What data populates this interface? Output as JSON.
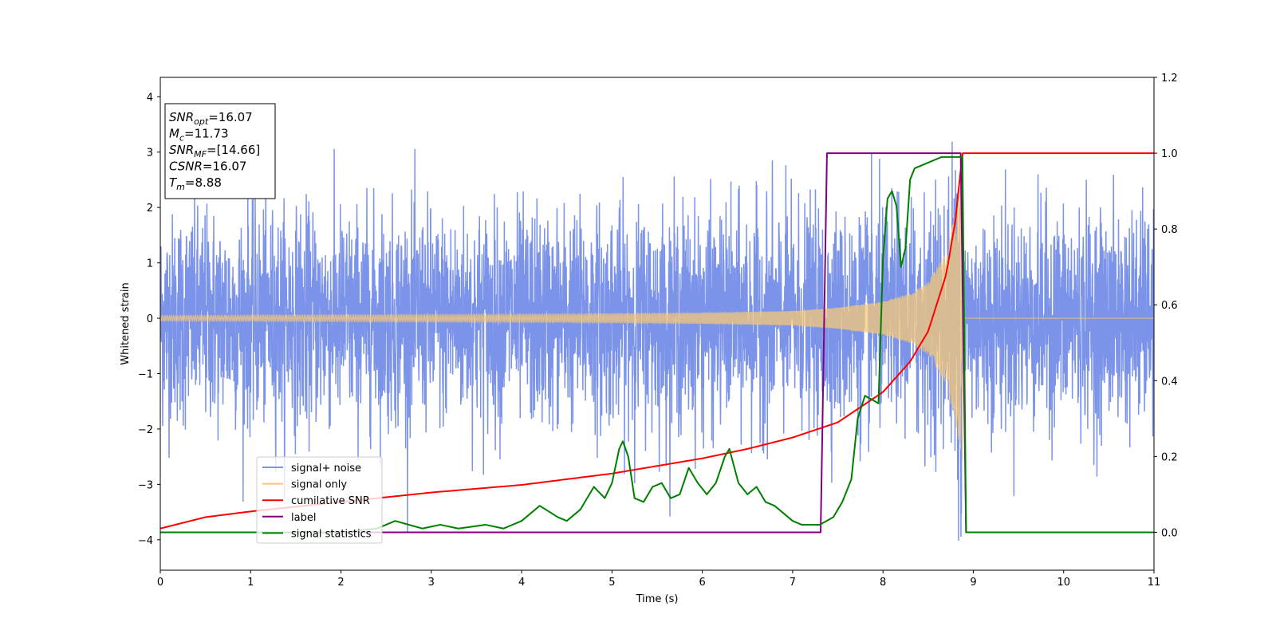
{
  "chart_data": {
    "type": "line",
    "xlabel": "Time (s)",
    "ylabel_left": "Whitened strain",
    "ylabel_right": "",
    "xlim": [
      0,
      11
    ],
    "ylim_left": [
      -4.55,
      4.35
    ],
    "ylim_right": [
      -0.1,
      1.2
    ],
    "x_ticks": [
      0,
      1,
      2,
      3,
      4,
      5,
      6,
      7,
      8,
      9,
      10,
      11
    ],
    "y_ticks_left": [
      -4,
      -3,
      -2,
      -1,
      0,
      1,
      2,
      3,
      4
    ],
    "y_ticks_right": [
      0.0,
      0.2,
      0.4,
      0.6,
      0.8,
      1.0,
      1.2
    ],
    "y_tick_labels_left": [
      "−4",
      "−3",
      "−2",
      "−1",
      "0",
      "1",
      "2",
      "3",
      "4"
    ],
    "y_tick_labels_right": [
      "0.0",
      "0.2",
      "0.4",
      "0.6",
      "0.8",
      "1.0",
      "1.2"
    ],
    "grid": false,
    "legend_position": "lower-left",
    "info_box": {
      "lines": [
        {
          "main": "SNR",
          "sub": "opt",
          "value": "=16.07"
        },
        {
          "main": "M",
          "sub": "c",
          "value": "=11.73"
        },
        {
          "main": "SNR",
          "sub": "MF",
          "value": "=[14.66]"
        },
        {
          "main": "CSNR",
          "sub": "",
          "value": "=16.07"
        },
        {
          "main": "T",
          "sub": "m",
          "value": "=8.88"
        }
      ]
    },
    "series": [
      {
        "name": "signal+ noise",
        "axis": "left",
        "color": "#7b93e8",
        "style": "noise",
        "noise_std": 0.95,
        "spike_range": [
          -4.15,
          3.95
        ]
      },
      {
        "name": "signal only",
        "axis": "left",
        "color": "#f5c878",
        "style": "chirp",
        "t_merge": 8.88,
        "envelope": {
          "t": [
            0,
            2,
            4,
            6,
            7,
            7.5,
            8,
            8.3,
            8.5,
            8.7,
            8.8,
            8.88
          ],
          "amp": [
            0.05,
            0.06,
            0.07,
            0.1,
            0.13,
            0.19,
            0.3,
            0.45,
            0.65,
            1.2,
            1.9,
            2.6
          ]
        }
      },
      {
        "name": "cumilative SNR",
        "axis": "right",
        "color": "#ff0000",
        "x": [
          0,
          0.5,
          1,
          2,
          3,
          4,
          5,
          6,
          6.5,
          7,
          7.5,
          8,
          8.3,
          8.5,
          8.7,
          8.8,
          8.88,
          8.9,
          11
        ],
        "y": [
          0.01,
          0.04,
          0.055,
          0.08,
          0.105,
          0.125,
          0.155,
          0.195,
          0.22,
          0.25,
          0.29,
          0.37,
          0.45,
          0.53,
          0.68,
          0.82,
          1.0,
          1.0,
          1.0
        ]
      },
      {
        "name": "label",
        "axis": "right",
        "color": "#800080",
        "x": [
          0,
          7.31,
          7.32,
          7.38,
          8.86,
          8.92,
          11
        ],
        "y": [
          0.0,
          0.0,
          0.14,
          1.0,
          1.0,
          0.0,
          0.0
        ]
      },
      {
        "name": "signal statistics",
        "axis": "right",
        "color": "#008000",
        "x": [
          0,
          1,
          2,
          2.4,
          2.6,
          2.9,
          3.1,
          3.3,
          3.6,
          3.8,
          4.0,
          4.2,
          4.4,
          4.5,
          4.65,
          4.8,
          4.92,
          5.0,
          5.08,
          5.12,
          5.18,
          5.25,
          5.35,
          5.45,
          5.55,
          5.65,
          5.75,
          5.85,
          5.95,
          6.05,
          6.15,
          6.25,
          6.3,
          6.4,
          6.5,
          6.6,
          6.7,
          6.8,
          6.9,
          7.0,
          7.1,
          7.3,
          7.45,
          7.55,
          7.65,
          7.72,
          7.8,
          7.88,
          7.95,
          8.0,
          8.05,
          8.1,
          8.15,
          8.2,
          8.25,
          8.3,
          8.35,
          8.45,
          8.55,
          8.65,
          8.75,
          8.83,
          8.88,
          8.92,
          11
        ],
        "y": [
          0.0,
          0.0,
          0.0,
          0.01,
          0.03,
          0.01,
          0.02,
          0.01,
          0.02,
          0.01,
          0.03,
          0.07,
          0.04,
          0.03,
          0.06,
          0.12,
          0.09,
          0.13,
          0.22,
          0.24,
          0.2,
          0.09,
          0.08,
          0.12,
          0.13,
          0.09,
          0.1,
          0.17,
          0.13,
          0.1,
          0.13,
          0.2,
          0.22,
          0.13,
          0.1,
          0.12,
          0.08,
          0.07,
          0.05,
          0.03,
          0.02,
          0.02,
          0.04,
          0.08,
          0.14,
          0.3,
          0.36,
          0.35,
          0.34,
          0.72,
          0.88,
          0.9,
          0.86,
          0.7,
          0.75,
          0.93,
          0.96,
          0.97,
          0.98,
          0.99,
          0.99,
          0.99,
          0.99,
          0.0,
          0.0
        ]
      }
    ]
  }
}
